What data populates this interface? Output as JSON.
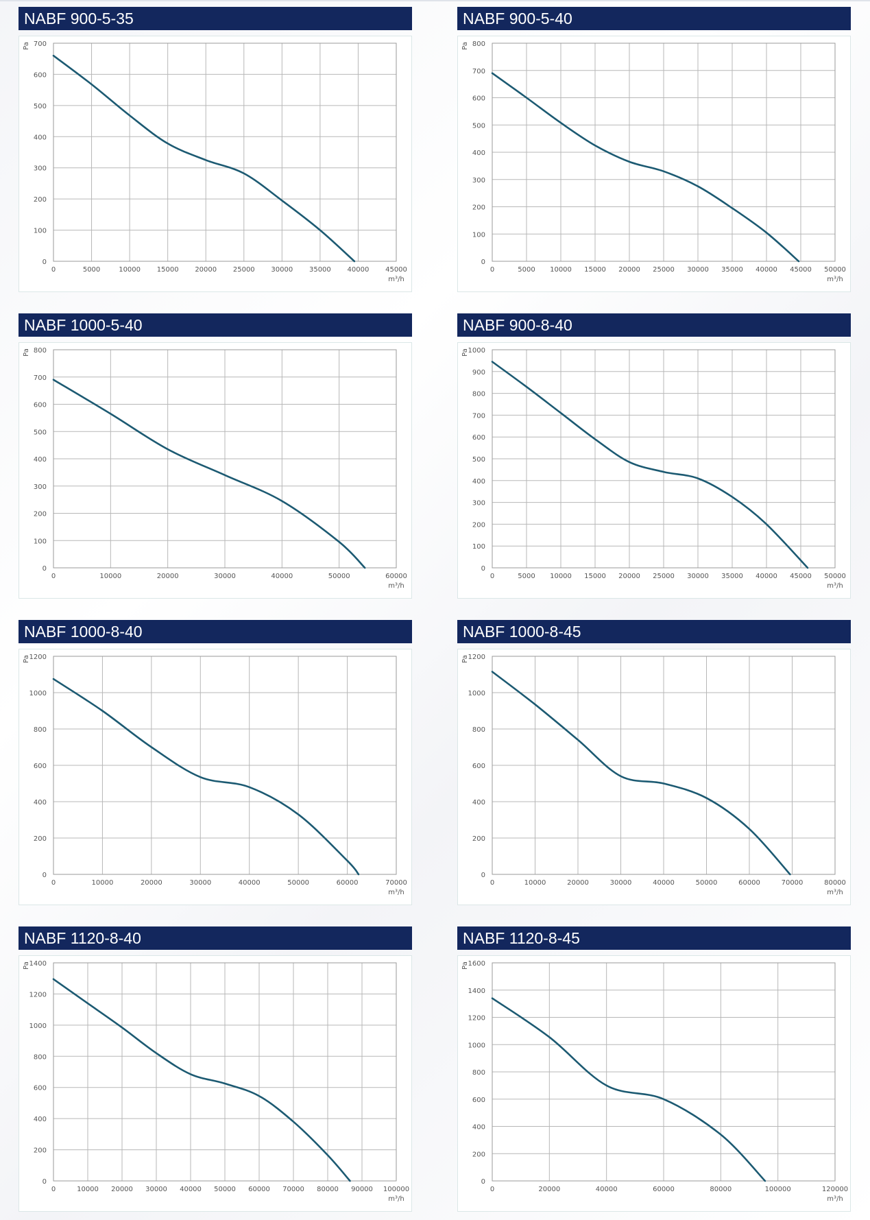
{
  "colors": {
    "header_bg": "#13275d",
    "header_text": "#ffffff",
    "curve": "#1c5a72",
    "grid": "#b7b7b7"
  },
  "chart_data": [
    {
      "type": "line",
      "title": "NABF 900-5-35",
      "ylabel": "Pa",
      "xlabel": "m³/h",
      "xlim": [
        0,
        45000
      ],
      "ylim": [
        0,
        700
      ],
      "xticks": [
        0,
        5000,
        10000,
        15000,
        20000,
        25000,
        30000,
        35000,
        40000,
        45000
      ],
      "yticks": [
        0,
        100,
        200,
        300,
        400,
        500,
        600,
        700
      ],
      "grid": true,
      "series": [
        {
          "x": [
            0,
            5000,
            10000,
            15000,
            20000,
            25000,
            30000,
            35000,
            39500
          ],
          "y": [
            660,
            568,
            468,
            378,
            325,
            282,
            195,
            100,
            0
          ]
        }
      ]
    },
    {
      "type": "line",
      "title": "NABF 900-5-40",
      "ylabel": "Pa",
      "xlabel": "m³/h",
      "xlim": [
        0,
        50000
      ],
      "ylim": [
        0,
        800
      ],
      "xticks": [
        0,
        5000,
        10000,
        15000,
        20000,
        25000,
        30000,
        35000,
        40000,
        45000,
        50000
      ],
      "yticks": [
        0,
        100,
        200,
        300,
        400,
        500,
        600,
        700,
        800
      ],
      "grid": true,
      "series": [
        {
          "x": [
            0,
            5000,
            10000,
            15000,
            20000,
            25000,
            30000,
            35000,
            40000,
            44700
          ],
          "y": [
            690,
            600,
            508,
            425,
            365,
            330,
            275,
            195,
            105,
            0
          ]
        }
      ]
    },
    {
      "type": "line",
      "title": "NABF 1000-5-40",
      "ylabel": "Pa",
      "xlabel": "m³/h",
      "xlim": [
        0,
        60000
      ],
      "ylim": [
        0,
        800
      ],
      "xticks": [
        0,
        10000,
        20000,
        30000,
        40000,
        50000,
        60000
      ],
      "yticks": [
        0,
        100,
        200,
        300,
        400,
        500,
        600,
        700,
        800
      ],
      "grid": true,
      "series": [
        {
          "x": [
            0,
            10000,
            20000,
            30000,
            40000,
            50000,
            54500
          ],
          "y": [
            690,
            565,
            435,
            340,
            245,
            95,
            0
          ]
        }
      ]
    },
    {
      "type": "line",
      "title": "NABF 900-8-40",
      "ylabel": "Pa",
      "xlabel": "m³/h",
      "xlim": [
        0,
        50000
      ],
      "ylim": [
        0,
        1000
      ],
      "xticks": [
        0,
        5000,
        10000,
        15000,
        20000,
        25000,
        30000,
        35000,
        40000,
        45000,
        50000
      ],
      "yticks": [
        0,
        100,
        200,
        300,
        400,
        500,
        600,
        700,
        800,
        900,
        1000
      ],
      "grid": true,
      "series": [
        {
          "x": [
            0,
            5000,
            10000,
            15000,
            20000,
            25000,
            30000,
            35000,
            40000,
            46000
          ],
          "y": [
            945,
            830,
            710,
            590,
            485,
            440,
            410,
            325,
            200,
            0
          ]
        }
      ]
    },
    {
      "type": "line",
      "title": "NABF 1000-8-40",
      "ylabel": "Pa",
      "xlabel": "m³/h",
      "xlim": [
        0,
        70000
      ],
      "ylim": [
        0,
        1200
      ],
      "xticks": [
        0,
        10000,
        20000,
        30000,
        40000,
        50000,
        60000,
        70000
      ],
      "yticks": [
        0,
        200,
        400,
        600,
        800,
        1000,
        1200
      ],
      "grid": true,
      "series": [
        {
          "x": [
            0,
            10000,
            20000,
            30000,
            40000,
            50000,
            60000,
            62300
          ],
          "y": [
            1075,
            900,
            700,
            535,
            480,
            330,
            75,
            0
          ]
        }
      ]
    },
    {
      "type": "line",
      "title": "NABF 1000-8-45",
      "ylabel": "Pa",
      "xlabel": "m³/h",
      "xlim": [
        0,
        80000
      ],
      "ylim": [
        0,
        1200
      ],
      "xticks": [
        0,
        10000,
        20000,
        30000,
        40000,
        50000,
        60000,
        70000,
        80000
      ],
      "yticks": [
        0,
        200,
        400,
        600,
        800,
        1000,
        1200
      ],
      "grid": true,
      "series": [
        {
          "x": [
            0,
            10000,
            20000,
            30000,
            40000,
            50000,
            60000,
            69500
          ],
          "y": [
            1115,
            935,
            740,
            540,
            500,
            420,
            250,
            0
          ]
        }
      ]
    },
    {
      "type": "line",
      "title": "NABF 1120-8-40",
      "ylabel": "Pa",
      "xlabel": "m³/h",
      "xlim": [
        0,
        100000
      ],
      "ylim": [
        0,
        1400
      ],
      "xticks": [
        0,
        10000,
        20000,
        30000,
        40000,
        50000,
        60000,
        70000,
        80000,
        90000,
        100000
      ],
      "yticks": [
        0,
        200,
        400,
        600,
        800,
        1000,
        1200,
        1400
      ],
      "grid": true,
      "series": [
        {
          "x": [
            0,
            10000,
            20000,
            30000,
            40000,
            50000,
            60000,
            70000,
            80000,
            86500
          ],
          "y": [
            1295,
            1140,
            985,
            820,
            685,
            625,
            545,
            380,
            165,
            0
          ]
        }
      ]
    },
    {
      "type": "line",
      "title": "NABF 1120-8-45",
      "ylabel": "Pa",
      "xlabel": "m³/h",
      "xlim": [
        0,
        120000
      ],
      "ylim": [
        0,
        1600
      ],
      "xticks": [
        0,
        20000,
        40000,
        60000,
        80000,
        100000,
        120000
      ],
      "yticks": [
        0,
        200,
        400,
        600,
        800,
        1000,
        1200,
        1400,
        1600
      ],
      "grid": true,
      "series": [
        {
          "x": [
            0,
            20000,
            40000,
            60000,
            80000,
            95500
          ],
          "y": [
            1340,
            1055,
            700,
            600,
            340,
            0
          ]
        }
      ]
    }
  ]
}
